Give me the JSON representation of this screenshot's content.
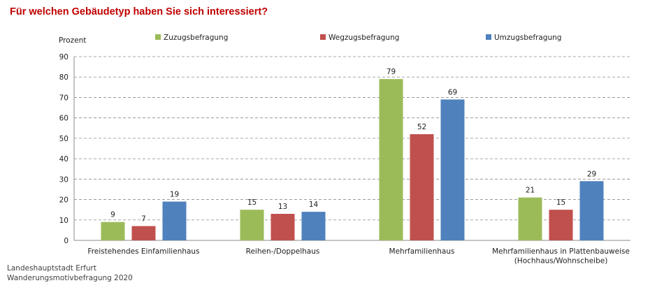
{
  "title": "Für welchen Gebäudetyp haben Sie sich interessiert?",
  "source": [
    "Landeshauptstadt Erfurt",
    "Wanderungsmotivbefragung 2020"
  ],
  "chart_data": {
    "type": "bar",
    "title": "Für welchen Gebäudetyp haben Sie sich interessiert?",
    "ylabel": "Prozent",
    "xlabel": "",
    "ylim": [
      0,
      90
    ],
    "yticks": [
      0,
      10,
      20,
      30,
      40,
      50,
      60,
      70,
      80,
      90
    ],
    "grid": true,
    "legend_position": "top",
    "categories": [
      [
        "Freistehendes Einfamilienhaus"
      ],
      [
        "Reihen-/Doppelhaus"
      ],
      [
        "Mehrfamilienhaus"
      ],
      [
        "Mehrfamilienhaus in Plattenbauweise",
        "(Hochhaus/Wohnscheibe)"
      ]
    ],
    "series": [
      {
        "name": "Zuzugsbefragung",
        "color": "#9bbb59",
        "values": [
          9,
          15,
          79,
          21
        ]
      },
      {
        "name": "Wegzugsbefragung",
        "color": "#c0504d",
        "values": [
          7,
          13,
          52,
          15
        ]
      },
      {
        "name": "Umzugsbefragung",
        "color": "#4f81bd",
        "values": [
          19,
          14,
          69,
          29
        ]
      }
    ]
  }
}
